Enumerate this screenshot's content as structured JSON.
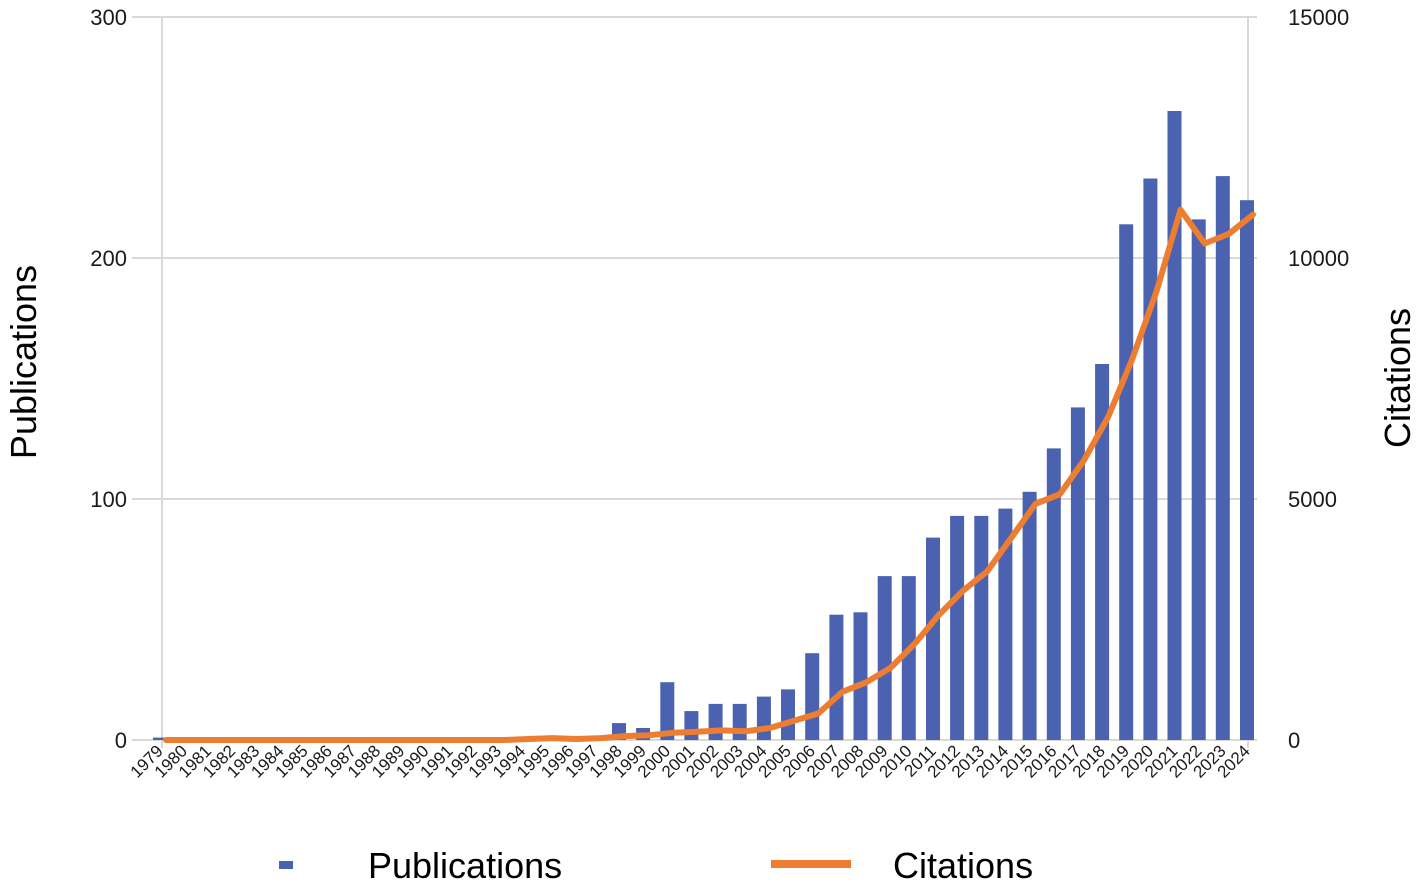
{
  "chart_data": {
    "type": "bar+line",
    "categories": [
      "1979",
      "1980",
      "1981",
      "1982",
      "1983",
      "1984",
      "1985",
      "1986",
      "1987",
      "1988",
      "1989",
      "1990",
      "1991",
      "1992",
      "1993",
      "1994",
      "1995",
      "1996",
      "1997",
      "1998",
      "1999",
      "2000",
      "2001",
      "2002",
      "2003",
      "2004",
      "2005",
      "2006",
      "2007",
      "2008",
      "2009",
      "2010",
      "2011",
      "2012",
      "2013",
      "2014",
      "2015",
      "2016",
      "2017",
      "2018",
      "2019",
      "2020",
      "2021",
      "2022",
      "2023",
      "2024"
    ],
    "series": [
      {
        "name": "Publications",
        "type": "bar",
        "axis": "left",
        "color": "#4a62b0",
        "values": [
          1,
          0,
          0,
          0,
          0,
          0,
          0,
          0,
          0,
          0,
          0,
          0,
          0,
          0,
          0,
          0,
          0,
          0,
          0,
          7,
          5,
          24,
          12,
          15,
          15,
          18,
          21,
          36,
          52,
          53,
          68,
          68,
          84,
          93,
          93,
          96,
          103,
          121,
          138,
          156,
          214,
          233,
          261,
          216,
          234,
          224
        ]
      },
      {
        "name": "Citations",
        "type": "line",
        "axis": "right",
        "color": "#ed7d31",
        "values": [
          0,
          0,
          0,
          0,
          0,
          0,
          0,
          0,
          0,
          0,
          0,
          0,
          0,
          0,
          0,
          20,
          40,
          20,
          40,
          80,
          100,
          150,
          170,
          200,
          180,
          250,
          400,
          550,
          1000,
          1200,
          1500,
          2000,
          2600,
          3100,
          3500,
          4200,
          4900,
          5100,
          5800,
          6700,
          7900,
          9300,
          11000,
          10300,
          10500,
          10900
        ]
      }
    ],
    "y_left": {
      "label": "Publications",
      "ylim": [
        0,
        300
      ],
      "ticks": [
        "0",
        "100",
        "200",
        "300"
      ]
    },
    "y_right": {
      "label": "Citations",
      "ylim": [
        0,
        15000
      ],
      "ticks": [
        "0",
        "5000",
        "10000",
        "15000"
      ]
    },
    "grid": true,
    "legend": {
      "placement": "bottom",
      "entries": [
        "Publications",
        "Citations"
      ]
    }
  }
}
